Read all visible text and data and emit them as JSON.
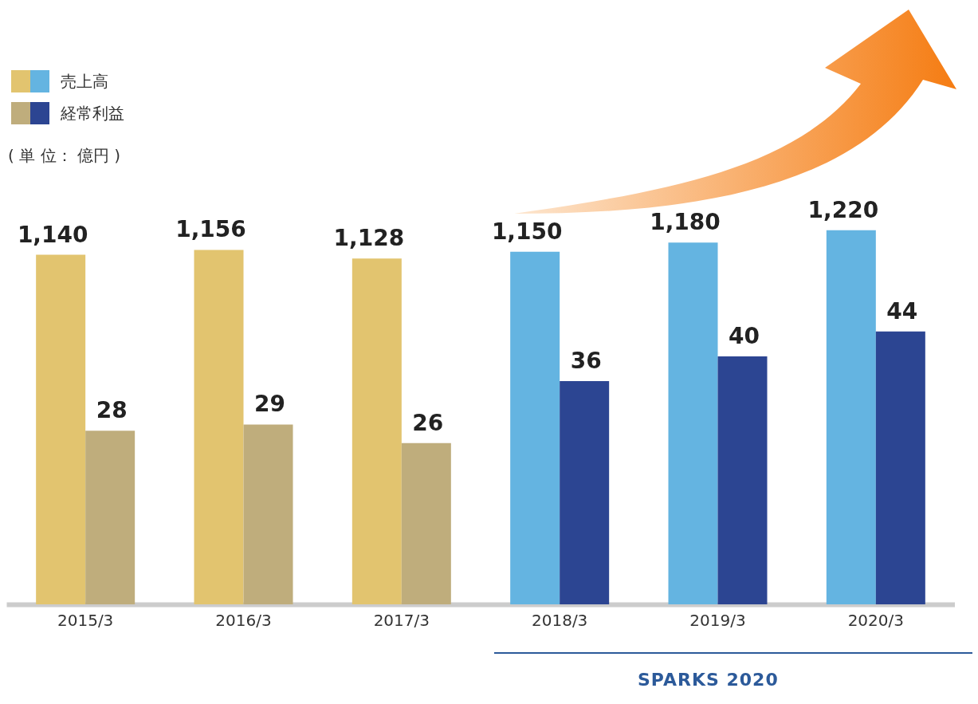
{
  "chart_data": {
    "type": "bar",
    "categories": [
      "2015/3",
      "2016/3",
      "2017/3",
      "2018/3",
      "2019/3",
      "2020/3"
    ],
    "series": [
      {
        "name": "売上高",
        "colors": [
          "#e2c46f",
          "#e2c46f",
          "#e2c46f",
          "#64b4e1",
          "#64b4e1",
          "#64b4e1"
        ],
        "values": [
          1140,
          1156,
          1128,
          1150,
          1180,
          1220
        ],
        "value_labels": [
          "1,140",
          "1,156",
          "1,128",
          "1,150",
          "1,180",
          "1,220"
        ]
      },
      {
        "name": "経常利益",
        "axis": "y2",
        "colors": [
          "#bfad7c",
          "#bfad7c",
          "#bfad7c",
          "#2c4592",
          "#2c4592",
          "#2c4592"
        ],
        "values": [
          28,
          29,
          26,
          36,
          40,
          44
        ],
        "value_labels": [
          "28",
          "29",
          "26",
          "36",
          "40",
          "44"
        ]
      }
    ],
    "tick_labels": "x",
    "legend": "top left",
    "annotations": [
      "( 単 位： 億円 )",
      "SPARKS 2020"
    ]
  }
}
